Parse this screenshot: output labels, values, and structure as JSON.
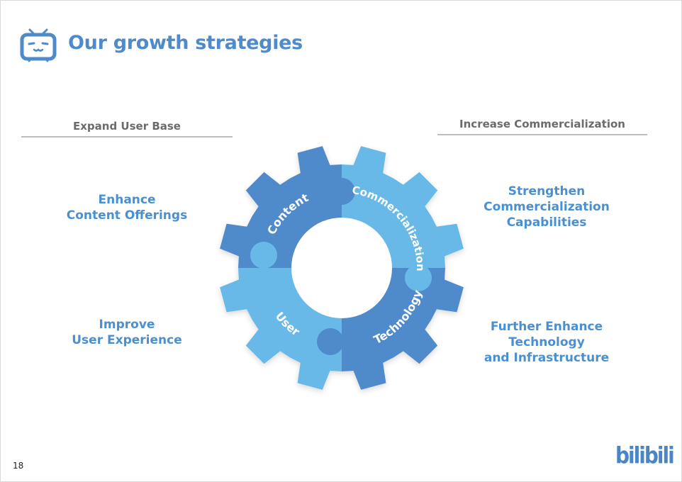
{
  "header": {
    "title": "Our growth strategies",
    "icon": "tv-mascot-icon"
  },
  "left": {
    "heading": "Expand User Base",
    "items": [
      {
        "line1": "Enhance",
        "line2": "Content Offerings"
      },
      {
        "line1": "Improve",
        "line2": "User Experience"
      }
    ]
  },
  "right": {
    "heading": "Increase Commercialization",
    "items": [
      {
        "line1": "Strengthen",
        "line2": "Commercialization",
        "line3": "Capabilities"
      },
      {
        "line1": "Further Enhance",
        "line2": "Technology",
        "line3": "and Infrastructure"
      }
    ]
  },
  "gear": {
    "segments": [
      "Content",
      "Commercialization",
      "Technology",
      "User"
    ],
    "colors": {
      "dark": "#4f8acb",
      "light": "#67b9e8"
    }
  },
  "footer": {
    "page_number": "18",
    "logo": "bilibili"
  }
}
